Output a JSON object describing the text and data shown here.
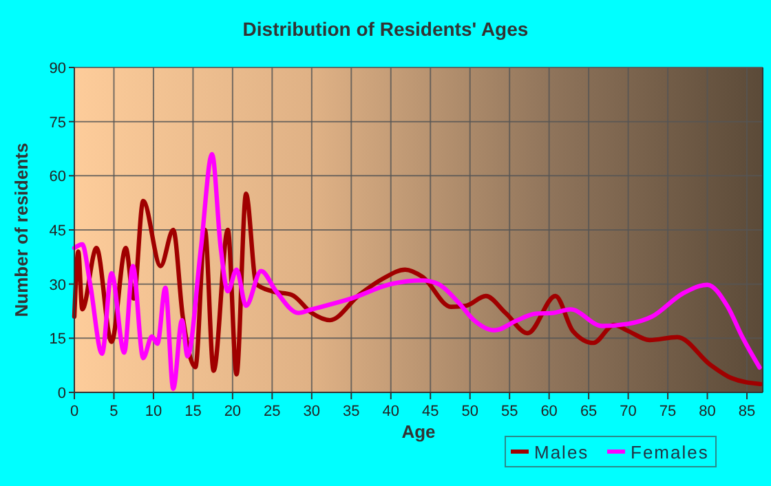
{
  "chart_data": {
    "type": "line",
    "title": "Distribution of Residents' Ages",
    "xlabel": "Age",
    "ylabel": "Number of residents",
    "xlim": [
      0,
      87
    ],
    "xticks": [
      0,
      5,
      10,
      15,
      20,
      25,
      30,
      35,
      40,
      45,
      50,
      55,
      60,
      65,
      70,
      75,
      80,
      85
    ],
    "ylim": [
      0,
      90
    ],
    "yticks": [
      0,
      15,
      30,
      45,
      60,
      75,
      90
    ],
    "grid": true,
    "legend": "bottom",
    "marker": "none",
    "line_style": "solid",
    "series": [
      {
        "name": "Males",
        "color": "#a00000",
        "x": [
          0,
          0.5,
          1,
          2.8,
          4.7,
          6.5,
          7.5,
          8.7,
          10.9,
          12.5,
          13.7,
          15.3,
          16.5,
          17.6,
          19.4,
          20.5,
          21.7,
          23,
          25,
          27.5,
          30,
          32.3,
          36,
          39,
          41.8,
          44,
          47.6,
          49.5,
          52,
          54.5,
          57.3,
          60.8,
          63,
          65.6,
          68.2,
          70,
          72.7,
          76.2,
          80.4,
          83,
          86.7
        ],
        "values": [
          21,
          39,
          23,
          40,
          14,
          40,
          26,
          53,
          35,
          45,
          21,
          7,
          45,
          6,
          45,
          5,
          55,
          30,
          28,
          27,
          22,
          20,
          27,
          31.5,
          34,
          32,
          23.7,
          24,
          26.7,
          22,
          16.4,
          26.7,
          17,
          13.7,
          18.7,
          17,
          14.5,
          15.3,
          7.6,
          4,
          2.3
        ]
      },
      {
        "name": "Females",
        "color": "#ff00ff",
        "x": [
          0,
          1,
          2,
          3.5,
          4.7,
          6.3,
          7.4,
          8.7,
          9.8,
          10.5,
          11.5,
          12.5,
          13.6,
          14.3,
          16,
          17.4,
          18.5,
          19.4,
          20.5,
          21.7,
          23.6,
          25.5,
          28.3,
          30,
          35,
          40,
          44,
          46,
          48.5,
          50.5,
          53.1,
          56,
          58.3,
          60.5,
          62.7,
          66.7,
          70,
          73,
          76.9,
          80,
          82.5,
          84.5,
          86.6
        ],
        "values": [
          40,
          41,
          30,
          10.7,
          33,
          11,
          35,
          9.5,
          15.5,
          13.5,
          29,
          1,
          20,
          10,
          40,
          66,
          40,
          28,
          34,
          24,
          33.6,
          28,
          22,
          23,
          26,
          30,
          31,
          30,
          25,
          20,
          17.2,
          20,
          21.8,
          22,
          23,
          18.4,
          19,
          21,
          27.4,
          29.8,
          24,
          15,
          6.9
        ]
      }
    ]
  }
}
